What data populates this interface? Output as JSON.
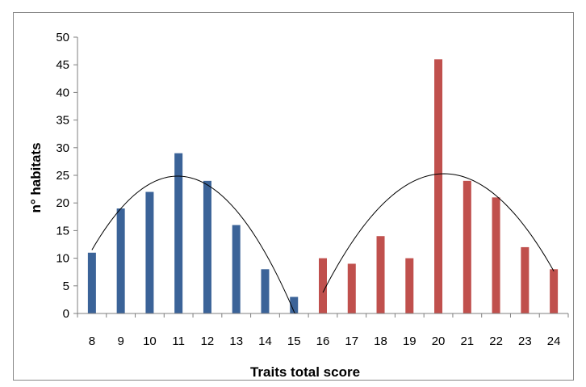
{
  "chart_data": {
    "type": "bar",
    "title": "",
    "xlabel": "Traits total score",
    "ylabel": "n° habitats",
    "ylim": [
      0,
      50
    ],
    "yticks": [
      0,
      5,
      10,
      15,
      20,
      25,
      30,
      35,
      40,
      45,
      50
    ],
    "grid": false,
    "legend": "none",
    "categories": [
      "8",
      "9",
      "10",
      "11",
      "12",
      "13",
      "14",
      "15",
      "16",
      "17",
      "18",
      "19",
      "20",
      "21",
      "22",
      "23",
      "24"
    ],
    "values": [
      11,
      19,
      22,
      29,
      24,
      16,
      8,
      3,
      10,
      9,
      14,
      10,
      46,
      24,
      21,
      12,
      8
    ],
    "bar_colors": [
      "#3B6398",
      "#3B6398",
      "#3B6398",
      "#3B6398",
      "#3B6398",
      "#3B6398",
      "#3B6398",
      "#3B6398",
      "#C0504D",
      "#C0504D",
      "#C0504D",
      "#C0504D",
      "#C0504D",
      "#C0504D",
      "#C0504D",
      "#C0504D",
      "#C0504D"
    ],
    "trendlines": [
      {
        "type": "quadratic-fit",
        "x": [
          8,
          9,
          10,
          11,
          12,
          13,
          14,
          15
        ],
        "y": [
          11,
          19,
          22,
          29,
          24,
          16,
          8,
          3
        ],
        "x_range": [
          8,
          15.8
        ],
        "color": "#000000"
      },
      {
        "type": "quadratic-fit",
        "x": [
          16,
          17,
          18,
          19,
          20,
          21,
          22,
          23,
          24
        ],
        "y": [
          10,
          9,
          14,
          10,
          46,
          24,
          21,
          12,
          8
        ],
        "x_range": [
          16,
          24
        ],
        "color": "#000000"
      }
    ]
  }
}
